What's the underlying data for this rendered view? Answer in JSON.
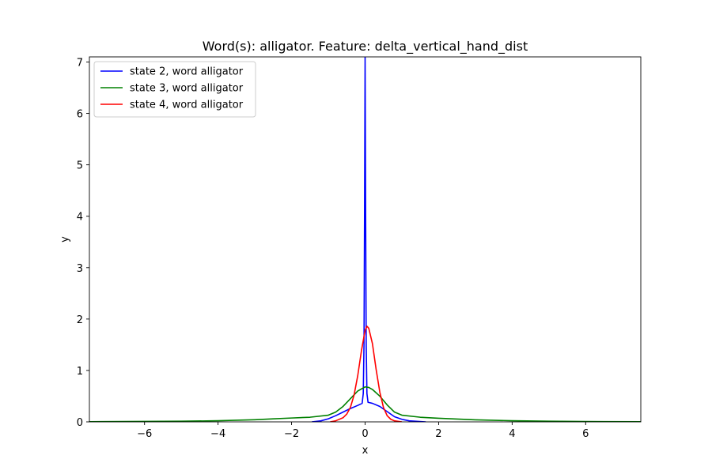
{
  "chart_data": {
    "type": "line",
    "title": "Word(s): alligator. Feature: delta_vertical_hand_dist",
    "xlabel": "x",
    "ylabel": "y",
    "xlim": [
      -7.5,
      7.5
    ],
    "ylim": [
      0,
      7.1
    ],
    "xticks": [
      -6,
      -4,
      -2,
      0,
      2,
      4,
      6
    ],
    "xtick_labels": [
      "−6",
      "−4",
      "−2",
      "0",
      "2",
      "4",
      "6"
    ],
    "yticks": [
      0,
      1,
      2,
      3,
      4,
      5,
      6,
      7
    ],
    "ytick_labels": [
      "0",
      "1",
      "2",
      "3",
      "4",
      "5",
      "6",
      "7"
    ],
    "grid": false,
    "legend_position": "top-left",
    "series": [
      {
        "name": "state 2, word alligator",
        "color": "#0000ff",
        "points": [
          [
            -1.45,
            0.0
          ],
          [
            -1.2,
            0.02
          ],
          [
            -1.0,
            0.06
          ],
          [
            -0.8,
            0.12
          ],
          [
            -0.6,
            0.19
          ],
          [
            -0.4,
            0.26
          ],
          [
            -0.2,
            0.32
          ],
          [
            -0.08,
            0.36
          ],
          [
            -0.05,
            0.55
          ],
          [
            -0.03,
            1.5
          ],
          [
            -0.015,
            4.0
          ],
          [
            0.0,
            7.1
          ],
          [
            0.015,
            4.0
          ],
          [
            0.03,
            1.5
          ],
          [
            0.05,
            0.55
          ],
          [
            0.08,
            0.38
          ],
          [
            0.2,
            0.36
          ],
          [
            0.4,
            0.3
          ],
          [
            0.6,
            0.2
          ],
          [
            0.8,
            0.1
          ],
          [
            1.0,
            0.05
          ],
          [
            1.2,
            0.02
          ],
          [
            1.4,
            0.01
          ],
          [
            1.65,
            0.0
          ]
        ]
      },
      {
        "name": "state 3, word alligator",
        "color": "#008000",
        "points": [
          [
            -7.5,
            0.003
          ],
          [
            -6.0,
            0.008
          ],
          [
            -5.0,
            0.012
          ],
          [
            -4.0,
            0.022
          ],
          [
            -3.0,
            0.042
          ],
          [
            -2.5,
            0.058
          ],
          [
            -2.0,
            0.075
          ],
          [
            -1.5,
            0.09
          ],
          [
            -1.0,
            0.13
          ],
          [
            -0.8,
            0.19
          ],
          [
            -0.6,
            0.3
          ],
          [
            -0.4,
            0.45
          ],
          [
            -0.2,
            0.6
          ],
          [
            0.0,
            0.68
          ],
          [
            0.1,
            0.67
          ],
          [
            0.2,
            0.63
          ],
          [
            0.4,
            0.5
          ],
          [
            0.6,
            0.33
          ],
          [
            0.8,
            0.19
          ],
          [
            1.0,
            0.13
          ],
          [
            1.5,
            0.09
          ],
          [
            2.0,
            0.07
          ],
          [
            2.5,
            0.055
          ],
          [
            3.0,
            0.04
          ],
          [
            4.0,
            0.022
          ],
          [
            5.0,
            0.012
          ],
          [
            6.0,
            0.007
          ],
          [
            7.5,
            0.003
          ]
        ]
      },
      {
        "name": "state 4, word alligator",
        "color": "#ff0000",
        "points": [
          [
            -0.95,
            0.0
          ],
          [
            -0.8,
            0.02
          ],
          [
            -0.6,
            0.08
          ],
          [
            -0.5,
            0.15
          ],
          [
            -0.4,
            0.28
          ],
          [
            -0.3,
            0.52
          ],
          [
            -0.2,
            0.9
          ],
          [
            -0.1,
            1.38
          ],
          [
            0.0,
            1.78
          ],
          [
            0.05,
            1.86
          ],
          [
            0.1,
            1.82
          ],
          [
            0.2,
            1.52
          ],
          [
            0.3,
            1.02
          ],
          [
            0.4,
            0.58
          ],
          [
            0.5,
            0.28
          ],
          [
            0.6,
            0.12
          ],
          [
            0.7,
            0.05
          ],
          [
            0.8,
            0.02
          ],
          [
            1.0,
            0.0
          ]
        ]
      }
    ]
  }
}
